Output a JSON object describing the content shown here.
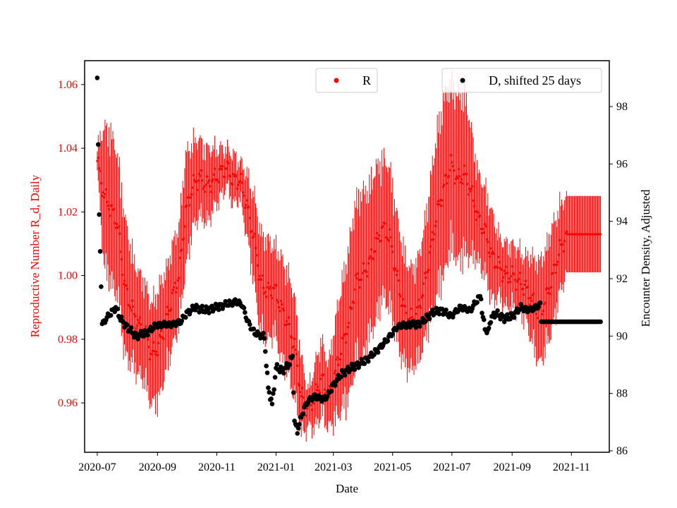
{
  "chart_data": {
    "type": "scatter",
    "xlabel": "Date",
    "ylabel_left": "Reproductive Number R_d, Daily",
    "ylabel_right": "Encounter Density, Adjusted",
    "x_ticks": [
      "2020-07",
      "2020-09",
      "2020-11",
      "2021-01",
      "2021-03",
      "2021-05",
      "2021-07",
      "2021-09",
      "2021-11"
    ],
    "left_ticks": [
      "0.96",
      "0.98",
      "1.00",
      "1.02",
      "1.04",
      "1.06"
    ],
    "right_ticks": [
      "86",
      "88",
      "90",
      "92",
      "94",
      "96",
      "98"
    ],
    "x_range": [
      "2020-06-18",
      "2021-12-10"
    ],
    "left_ylim": [
      0.9445,
      1.0675
    ],
    "right_ylim": [
      85.95,
      99.6
    ],
    "colors": {
      "R": "#ff0000",
      "D": "#000000",
      "axis": "#000000"
    },
    "legends": [
      {
        "label": "R",
        "color": "#ff0000",
        "placement": "upper-center"
      },
      {
        "label": "D, shifted 25 days",
        "color": "#000000",
        "placement": "upper-right"
      }
    ],
    "series_R": {
      "name": "R",
      "axis": "left",
      "anchors": [
        [
          "2020-07-01",
          1.036,
          0.004
        ],
        [
          "2020-07-08",
          1.025,
          0.022
        ],
        [
          "2020-07-15",
          1.021,
          0.024
        ],
        [
          "2020-07-22",
          1.016,
          0.022
        ],
        [
          "2020-07-29",
          0.997,
          0.022
        ],
        [
          "2020-08-05",
          0.99,
          0.018
        ],
        [
          "2020-08-12",
          0.985,
          0.016
        ],
        [
          "2020-08-19",
          0.982,
          0.016
        ],
        [
          "2020-08-26",
          0.975,
          0.016
        ],
        [
          "2020-09-02",
          0.978,
          0.018
        ],
        [
          "2020-09-09",
          0.985,
          0.016
        ],
        [
          "2020-09-16",
          0.993,
          0.016
        ],
        [
          "2020-09-23",
          1.0,
          0.016
        ],
        [
          "2020-09-30",
          1.02,
          0.018
        ],
        [
          "2020-10-07",
          1.028,
          0.014
        ],
        [
          "2020-10-14",
          1.031,
          0.012
        ],
        [
          "2020-10-21",
          1.028,
          0.012
        ],
        [
          "2020-10-28",
          1.03,
          0.01
        ],
        [
          "2020-11-04",
          1.032,
          0.008
        ],
        [
          "2020-11-11",
          1.034,
          0.006
        ],
        [
          "2020-11-18",
          1.03,
          0.008
        ],
        [
          "2020-11-25",
          1.03,
          0.006
        ],
        [
          "2020-12-02",
          1.022,
          0.01
        ],
        [
          "2020-12-09",
          1.012,
          0.014
        ],
        [
          "2020-12-16",
          0.998,
          0.016
        ],
        [
          "2020-12-23",
          0.995,
          0.016
        ],
        [
          "2020-12-30",
          0.996,
          0.014
        ],
        [
          "2021-01-06",
          0.99,
          0.016
        ],
        [
          "2021-01-13",
          0.985,
          0.016
        ],
        [
          "2021-01-20",
          0.978,
          0.016
        ],
        [
          "2021-01-27",
          0.962,
          0.012
        ],
        [
          "2021-02-03",
          0.958,
          0.006
        ],
        [
          "2021-02-10",
          0.962,
          0.01
        ],
        [
          "2021-02-17",
          0.968,
          0.012
        ],
        [
          "2021-02-24",
          0.962,
          0.01
        ],
        [
          "2021-03-03",
          0.97,
          0.016
        ],
        [
          "2021-03-10",
          0.978,
          0.02
        ],
        [
          "2021-03-17",
          0.985,
          0.024
        ],
        [
          "2021-03-24",
          0.998,
          0.026
        ],
        [
          "2021-03-31",
          1.0,
          0.026
        ],
        [
          "2021-04-07",
          1.004,
          0.024
        ],
        [
          "2021-04-14",
          1.01,
          0.024
        ],
        [
          "2021-04-21",
          1.015,
          0.022
        ],
        [
          "2021-04-28",
          1.012,
          0.022
        ],
        [
          "2021-05-05",
          1.0,
          0.02
        ],
        [
          "2021-05-12",
          0.99,
          0.018
        ],
        [
          "2021-05-19",
          0.986,
          0.016
        ],
        [
          "2021-05-26",
          0.988,
          0.016
        ],
        [
          "2021-06-02",
          0.996,
          0.018
        ],
        [
          "2021-06-09",
          1.008,
          0.022
        ],
        [
          "2021-06-16",
          1.02,
          0.026
        ],
        [
          "2021-06-23",
          1.028,
          0.028
        ],
        [
          "2021-06-30",
          1.035,
          0.026
        ],
        [
          "2021-07-07",
          1.03,
          0.026
        ],
        [
          "2021-07-14",
          1.032,
          0.026
        ],
        [
          "2021-07-21",
          1.026,
          0.02
        ],
        [
          "2021-07-28",
          1.018,
          0.014
        ],
        [
          "2021-08-04",
          1.014,
          0.014
        ],
        [
          "2021-08-11",
          1.006,
          0.014
        ],
        [
          "2021-08-18",
          1.003,
          0.01
        ],
        [
          "2021-08-25",
          1.0,
          0.01
        ],
        [
          "2021-09-01",
          1.0,
          0.01
        ],
        [
          "2021-09-08",
          0.998,
          0.01
        ],
        [
          "2021-09-15",
          0.996,
          0.01
        ],
        [
          "2021-09-22",
          0.992,
          0.014
        ],
        [
          "2021-09-29",
          0.988,
          0.016
        ],
        [
          "2021-10-06",
          0.993,
          0.016
        ],
        [
          "2021-10-13",
          1.0,
          0.016
        ],
        [
          "2021-10-20",
          1.008,
          0.014
        ],
        [
          "2021-10-27",
          1.013,
          0.012
        ],
        [
          "2021-11-03",
          1.013,
          0.012
        ],
        [
          "2021-11-10",
          1.013,
          0.012
        ],
        [
          "2021-11-17",
          1.013,
          0.012
        ],
        [
          "2021-11-24",
          1.013,
          0.012
        ],
        [
          "2021-12-01",
          1.013,
          0.012
        ]
      ]
    },
    "series_D": {
      "name": "D, shifted 25 days",
      "axis": "right",
      "anchors": [
        [
          "2020-07-01",
          99.0
        ],
        [
          "2020-07-02",
          96.6
        ],
        [
          "2020-07-03",
          94.2
        ],
        [
          "2020-07-04",
          93.0
        ],
        [
          "2020-07-05",
          91.8
        ],
        [
          "2020-07-06",
          90.4
        ],
        [
          "2020-07-10",
          90.6
        ],
        [
          "2020-07-15",
          90.8
        ],
        [
          "2020-07-20",
          91.0
        ],
        [
          "2020-07-25",
          90.6
        ],
        [
          "2020-08-01",
          90.3
        ],
        [
          "2020-08-10",
          90.0
        ],
        [
          "2020-08-20",
          90.1
        ],
        [
          "2020-09-01",
          90.4
        ],
        [
          "2020-09-15",
          90.4
        ],
        [
          "2020-09-25",
          90.5
        ],
        [
          "2020-10-01",
          90.8
        ],
        [
          "2020-10-10",
          91.0
        ],
        [
          "2020-10-20",
          90.9
        ],
        [
          "2020-11-01",
          91.0
        ],
        [
          "2020-11-10",
          91.1
        ],
        [
          "2020-11-20",
          91.2
        ],
        [
          "2020-11-27",
          91.1
        ],
        [
          "2020-12-03",
          90.5
        ],
        [
          "2020-12-10",
          90.1
        ],
        [
          "2020-12-20",
          90.0
        ],
        [
          "2020-12-22",
          89.0
        ],
        [
          "2020-12-24",
          88.2
        ],
        [
          "2020-12-28",
          87.6
        ],
        [
          "2021-01-01",
          88.9
        ],
        [
          "2021-01-08",
          88.8
        ],
        [
          "2021-01-14",
          89.0
        ],
        [
          "2021-01-18",
          89.3
        ],
        [
          "2021-01-20",
          87.0
        ],
        [
          "2021-01-23",
          86.7
        ],
        [
          "2021-01-28",
          87.3
        ],
        [
          "2021-02-02",
          87.7
        ],
        [
          "2021-02-10",
          87.9
        ],
        [
          "2021-02-18",
          87.8
        ],
        [
          "2021-02-23",
          87.9
        ],
        [
          "2021-03-01",
          88.3
        ],
        [
          "2021-03-10",
          88.7
        ],
        [
          "2021-03-20",
          88.9
        ],
        [
          "2021-04-01",
          89.1
        ],
        [
          "2021-04-12",
          89.4
        ],
        [
          "2021-04-18",
          89.6
        ],
        [
          "2021-04-26",
          89.9
        ],
        [
          "2021-05-05",
          90.3
        ],
        [
          "2021-05-15",
          90.4
        ],
        [
          "2021-05-25",
          90.4
        ],
        [
          "2021-06-01",
          90.5
        ],
        [
          "2021-06-10",
          90.8
        ],
        [
          "2021-06-20",
          90.9
        ],
        [
          "2021-06-30",
          90.7
        ],
        [
          "2021-07-10",
          91.0
        ],
        [
          "2021-07-20",
          90.9
        ],
        [
          "2021-07-28",
          91.3
        ],
        [
          "2021-07-31",
          91.4
        ],
        [
          "2021-08-01",
          90.8
        ],
        [
          "2021-08-04",
          90.3
        ],
        [
          "2021-08-07",
          90.1
        ],
        [
          "2021-08-10",
          90.6
        ],
        [
          "2021-08-15",
          90.8
        ],
        [
          "2021-08-25",
          90.6
        ],
        [
          "2021-09-01",
          90.7
        ],
        [
          "2021-09-10",
          91.0
        ],
        [
          "2021-09-20",
          90.9
        ],
        [
          "2021-09-30",
          91.1
        ],
        [
          "2021-10-01",
          90.5
        ],
        [
          "2021-12-01",
          90.5
        ]
      ]
    }
  }
}
